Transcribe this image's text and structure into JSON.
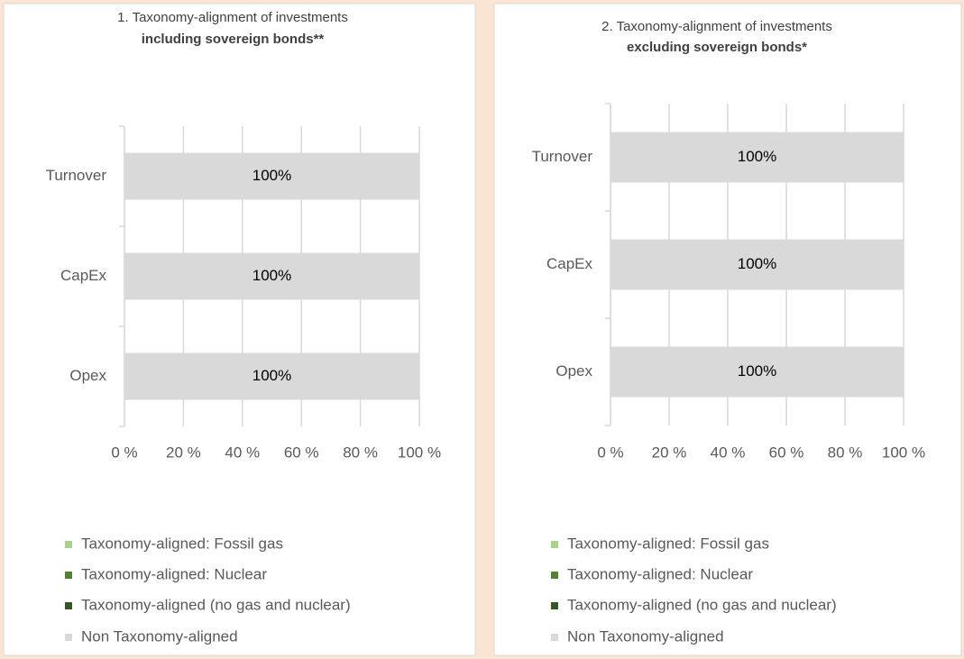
{
  "chart_data": [
    {
      "type": "bar",
      "orientation": "horizontal",
      "stacked": true,
      "title": "1. Taxonomy-alignment of investments",
      "subtitle": "including sovereign bonds**",
      "categories": [
        "Turnover",
        "CapEx",
        "Opex"
      ],
      "series": [
        {
          "name": "Taxonomy-aligned: Fossil gas",
          "color": "#a9d18e",
          "values": [
            0,
            0,
            0
          ]
        },
        {
          "name": "Taxonomy-aligned: Nuclear",
          "color": "#548235",
          "values": [
            0,
            0,
            0
          ]
        },
        {
          "name": "Taxonomy-aligned (no gas and nuclear)",
          "color": "#375623",
          "values": [
            0,
            0,
            0
          ]
        },
        {
          "name": "Non Taxonomy-aligned",
          "color": "#d9d9d9",
          "values": [
            100,
            100,
            100
          ],
          "value_labels": [
            "100%",
            "100%",
            "100%"
          ]
        }
      ],
      "xlim": [
        0,
        100
      ],
      "xticks": [
        {
          "value": 0,
          "label": "0 %"
        },
        {
          "value": 20,
          "label": "20 %"
        },
        {
          "value": 40,
          "label": "40 %"
        },
        {
          "value": 60,
          "label": "60 %"
        },
        {
          "value": 80,
          "label": "80 %"
        },
        {
          "value": 100,
          "label": "100 %"
        }
      ],
      "grid": true,
      "legend": "bottom"
    },
    {
      "type": "bar",
      "orientation": "horizontal",
      "stacked": true,
      "title": "2. Taxonomy-alignment of investments",
      "subtitle": "excluding sovereign bonds*",
      "categories": [
        "Turnover",
        "CapEx",
        "Opex"
      ],
      "series": [
        {
          "name": "Taxonomy-aligned: Fossil gas",
          "color": "#a9d18e",
          "values": [
            0,
            0,
            0
          ]
        },
        {
          "name": "Taxonomy-aligned: Nuclear",
          "color": "#548235",
          "values": [
            0,
            0,
            0
          ]
        },
        {
          "name": "Taxonomy-aligned (no gas and nuclear)",
          "color": "#375623",
          "values": [
            0,
            0,
            0
          ]
        },
        {
          "name": "Non Taxonomy-aligned",
          "color": "#d9d9d9",
          "values": [
            100,
            100,
            100
          ],
          "value_labels": [
            "100%",
            "100%",
            "100%"
          ]
        }
      ],
      "xlim": [
        0,
        100
      ],
      "xticks": [
        {
          "value": 0,
          "label": "0 %"
        },
        {
          "value": 20,
          "label": "20 %"
        },
        {
          "value": 40,
          "label": "40 %"
        },
        {
          "value": 60,
          "label": "60 %"
        },
        {
          "value": 80,
          "label": "80 %"
        },
        {
          "value": 100,
          "label": "100 %"
        }
      ],
      "grid": true,
      "legend": "bottom"
    }
  ]
}
